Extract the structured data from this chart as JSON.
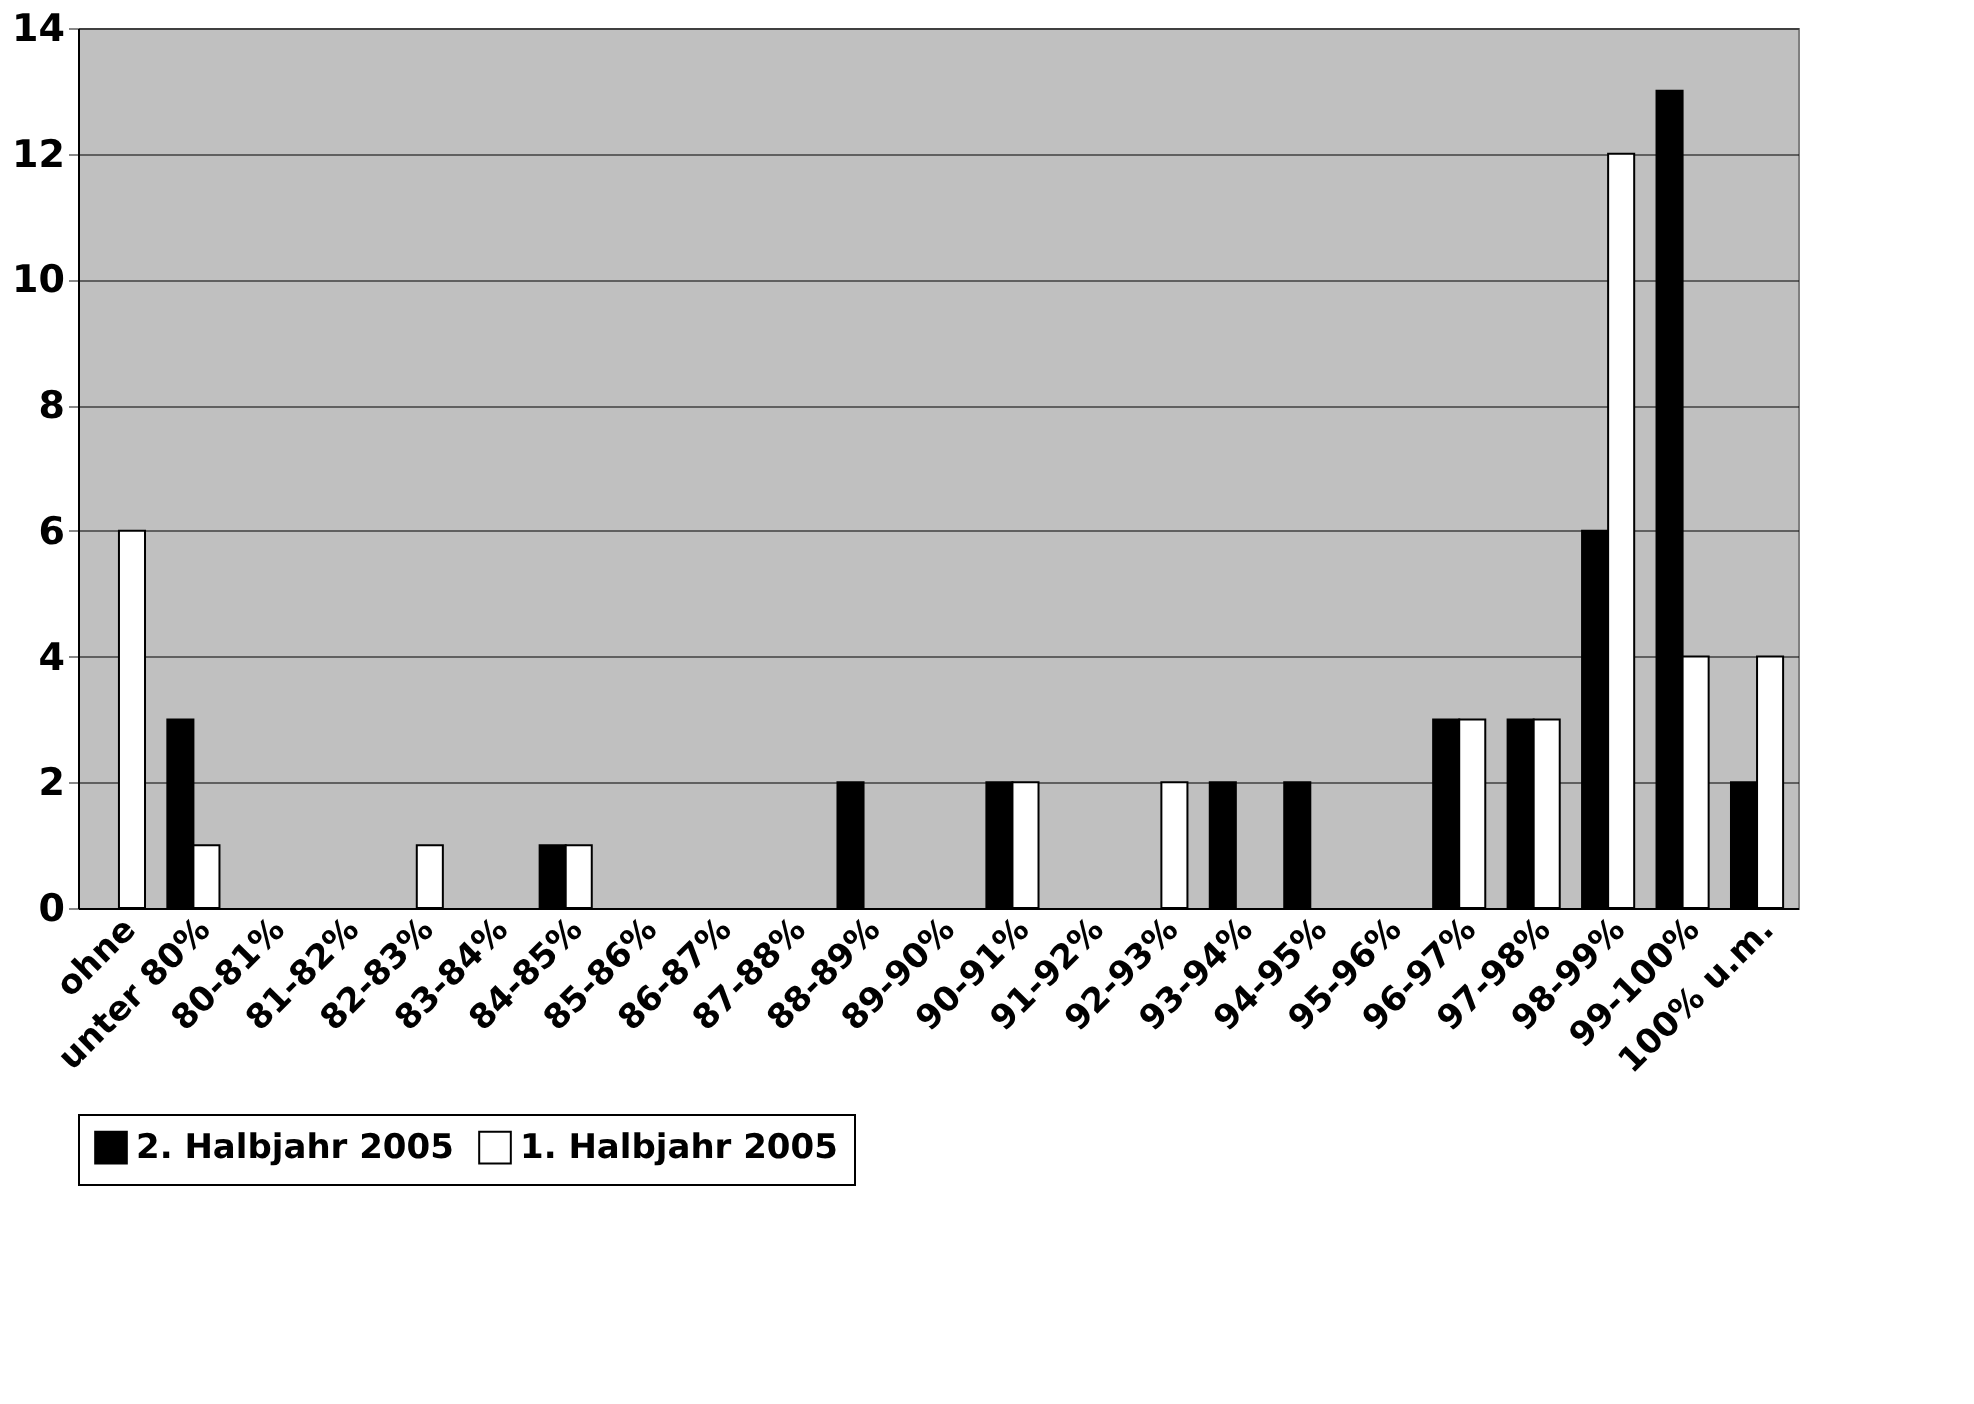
{
  "chart_data": {
    "type": "bar",
    "categories": [
      "ohne",
      "unter 80%",
      "80-81%",
      "81-82%",
      "82-83%",
      "83-84%",
      "84-85%",
      "85-86%",
      "86-87%",
      "87-88%",
      "88-89%",
      "89-90%",
      "90-91%",
      "91-92%",
      "92-93%",
      "93-94%",
      "94-95%",
      "95-96%",
      "96-97%",
      "97-98%",
      "98-99%",
      "99-100%",
      "100% u.m."
    ],
    "series": [
      {
        "name": "2. Halbjahr 2005",
        "color": "#000000",
        "values": [
          0,
          3,
          0,
          0,
          0,
          0,
          1,
          0,
          0,
          0,
          2,
          0,
          2,
          0,
          0,
          2,
          2,
          0,
          3,
          3,
          6,
          13,
          2
        ]
      },
      {
        "name": "1. Halbjahr 2005",
        "color": "#ffffff",
        "values": [
          6,
          1,
          0,
          0,
          1,
          0,
          1,
          0,
          0,
          0,
          0,
          0,
          2,
          0,
          2,
          0,
          0,
          0,
          3,
          3,
          12,
          4,
          4
        ]
      }
    ],
    "ylim": [
      0,
      14
    ],
    "yticks": [
      0,
      2,
      4,
      6,
      8,
      10,
      12,
      14
    ],
    "grid": "y",
    "legend": "bottom"
  }
}
